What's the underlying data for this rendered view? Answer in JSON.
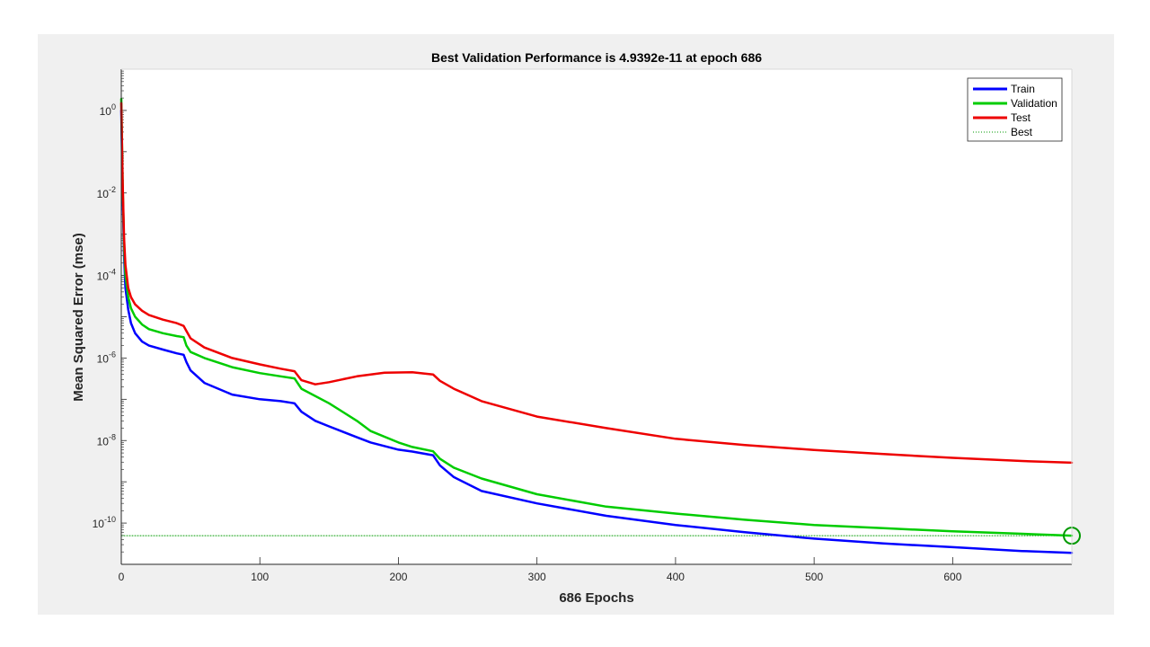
{
  "chart_data": {
    "type": "line",
    "title": "Best Validation Performance is 4.9392e-11 at epoch 686",
    "xlabel": "686 Epochs",
    "ylabel": "Mean Squared Error  (mse)",
    "x_scale": "linear",
    "y_scale": "log",
    "xlim": [
      0,
      686
    ],
    "ylim": [
      1e-11,
      10
    ],
    "x_ticks": [
      0,
      100,
      200,
      300,
      400,
      500,
      600
    ],
    "y_tick_exponents": [
      0,
      -2,
      -4,
      -6,
      -8,
      -10
    ],
    "grid": false,
    "legend_position": "top-right",
    "series": [
      {
        "name": "Train",
        "color": "#0000ff",
        "x": [
          0,
          1,
          2,
          3,
          5,
          7,
          10,
          15,
          20,
          30,
          40,
          45,
          47,
          50,
          60,
          80,
          100,
          115,
          125,
          130,
          140,
          150,
          170,
          180,
          200,
          210,
          225,
          230,
          240,
          260,
          300,
          350,
          400,
          450,
          500,
          550,
          600,
          650,
          686
        ],
        "y": [
          1.0,
          0.01,
          0.0003,
          5e-05,
          1.5e-05,
          7e-06,
          4e-06,
          2.5e-06,
          2e-06,
          1.6e-06,
          1.3e-06,
          1.2e-06,
          8e-07,
          5e-07,
          2.5e-07,
          1.3e-07,
          1e-07,
          9e-08,
          8e-08,
          5e-08,
          3e-08,
          2.2e-08,
          1.2e-08,
          9e-09,
          6e-09,
          5.4e-09,
          4.4e-09,
          2.5e-09,
          1.3e-09,
          6e-10,
          3e-10,
          1.5e-10,
          9e-11,
          6e-11,
          4.2e-11,
          3.2e-11,
          2.6e-11,
          2.1e-11,
          1.9e-11
        ]
      },
      {
        "name": "Validation",
        "color": "#00cc00",
        "x": [
          0,
          1,
          2,
          3,
          5,
          7,
          10,
          15,
          20,
          30,
          40,
          45,
          47,
          50,
          60,
          80,
          100,
          115,
          125,
          130,
          150,
          170,
          180,
          200,
          210,
          225,
          230,
          240,
          260,
          300,
          350,
          400,
          450,
          500,
          550,
          600,
          650,
          686
        ],
        "y": [
          1.9,
          0.02,
          0.0005,
          0.0001,
          3e-05,
          1.6e-05,
          1e-05,
          6.5e-06,
          5e-06,
          4e-06,
          3.4e-06,
          3.2e-06,
          2e-06,
          1.4e-06,
          1e-06,
          6e-07,
          4.3e-07,
          3.6e-07,
          3.2e-07,
          1.8e-07,
          8e-08,
          3e-08,
          1.7e-08,
          9e-09,
          7e-09,
          5.5e-09,
          3.6e-09,
          2.2e-09,
          1.2e-09,
          5e-10,
          2.5e-10,
          1.7e-10,
          1.2e-10,
          9e-11,
          7.5e-11,
          6.3e-11,
          5.5e-11,
          4.9392e-11
        ]
      },
      {
        "name": "Test",
        "color": "#ee0000",
        "x": [
          0,
          1,
          2,
          3,
          5,
          7,
          10,
          15,
          20,
          30,
          40,
          45,
          47,
          50,
          60,
          80,
          100,
          115,
          125,
          130,
          140,
          150,
          170,
          190,
          210,
          225,
          230,
          240,
          260,
          300,
          350,
          400,
          450,
          500,
          550,
          600,
          650,
          686
        ],
        "y": [
          1.5,
          0.02,
          0.0008,
          0.00018,
          5e-05,
          3e-05,
          2e-05,
          1.4e-05,
          1.1e-05,
          8.5e-06,
          7e-06,
          6e-06,
          4.5e-06,
          3e-06,
          1.8e-06,
          1e-06,
          7e-07,
          5.5e-07,
          4.8e-07,
          2.9e-07,
          2.3e-07,
          2.6e-07,
          3.6e-07,
          4.4e-07,
          4.5e-07,
          4e-07,
          2.8e-07,
          1.8e-07,
          9e-08,
          3.8e-08,
          2e-08,
          1.1e-08,
          7.8e-09,
          5.9e-09,
          4.7e-09,
          3.8e-09,
          3.2e-09,
          2.9e-09
        ]
      },
      {
        "name": "Best",
        "color": "#009900",
        "style": "dotted",
        "x": [
          0,
          686
        ],
        "y": [
          4.9392e-11,
          4.9392e-11
        ]
      }
    ],
    "best_marker": {
      "x": 686,
      "y": 4.9392e-11,
      "color": "#009900"
    },
    "legend_entries": [
      "Train",
      "Validation",
      "Test",
      "Best"
    ]
  }
}
